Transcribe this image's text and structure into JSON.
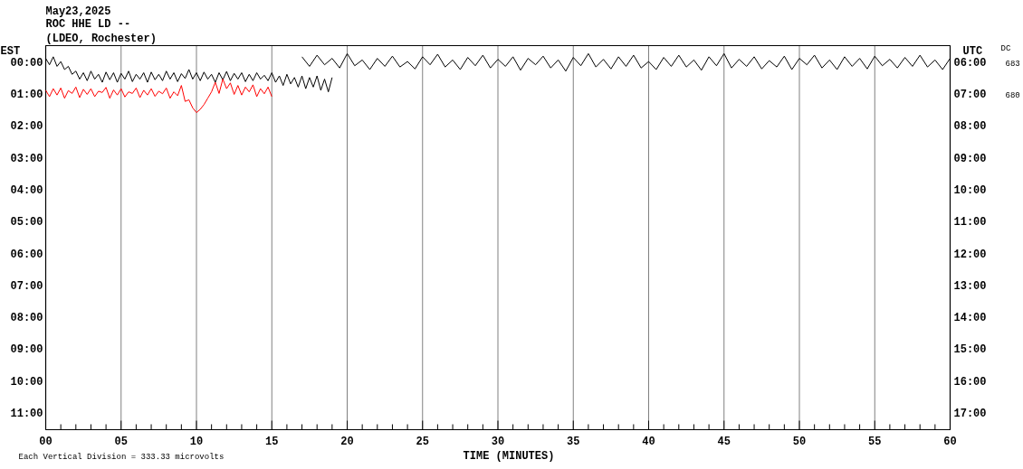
{
  "chart_data": {
    "type": "line",
    "title": "May23,2025",
    "subtitle": "ROC HHE LD --\n(LDEO, Rochester)",
    "xlabel": "TIME (MINUTES)",
    "annotations": [
      "EST",
      "UTC",
      "DC",
      "683",
      "680",
      "Each Vertical Division =  333.33 microvolts"
    ],
    "series": [
      {
        "color": "#000000",
        "x": [
          0,
          0.25,
          0.5,
          0.75,
          1,
          1.25,
          1.5,
          1.75,
          2,
          2.25,
          2.5,
          2.75,
          3,
          3.25,
          3.5,
          3.75,
          4,
          4.25,
          4.5,
          4.75,
          5,
          5.25,
          5.5,
          5.75,
          6,
          6.25,
          6.5,
          6.75,
          7,
          7.25,
          7.5,
          7.75,
          8,
          8.25,
          8.5,
          8.75,
          9,
          9.25,
          9.5,
          9.75,
          10,
          10.25,
          10.5,
          10.75,
          11,
          11.25,
          11.5,
          11.75,
          12,
          12.25,
          12.5,
          12.75,
          13,
          13.25,
          13.5,
          13.75,
          14,
          14.25,
          14.5,
          14.75,
          15,
          15.25,
          15.5,
          15.75,
          16,
          16.25,
          16.5,
          16.75,
          17,
          17.25,
          17.5,
          17.75,
          18,
          18.25,
          18.5,
          18.75,
          19
        ],
        "values": [
          -0.15,
          0.05,
          -0.2,
          0.1,
          -0.05,
          0.2,
          0.1,
          0.35,
          0.25,
          0.5,
          0.3,
          0.55,
          0.25,
          0.5,
          0.35,
          0.6,
          0.28,
          0.52,
          0.3,
          0.6,
          0.32,
          0.5,
          0.25,
          0.58,
          0.35,
          0.5,
          0.3,
          0.6,
          0.28,
          0.52,
          0.35,
          0.55,
          0.25,
          0.5,
          0.3,
          0.58,
          0.33,
          0.48,
          0.2,
          0.5,
          0.3,
          0.55,
          0.28,
          0.5,
          0.35,
          0.6,
          0.3,
          0.52,
          0.26,
          0.55,
          0.32,
          0.5,
          0.3,
          0.58,
          0.35,
          0.55,
          0.3,
          0.5,
          0.38,
          0.55,
          0.3,
          0.6,
          0.4,
          0.7,
          0.35,
          0.65,
          0.45,
          0.75,
          0.4,
          0.8,
          0.45,
          0.75,
          0.4,
          0.85,
          0.5,
          0.9,
          0.45
        ]
      },
      {
        "color": "#000000",
        "x": [
          17,
          17.5,
          18,
          18.5,
          19,
          19.5,
          20,
          20.5,
          21,
          21.5,
          22,
          22.5,
          23,
          23.5,
          24,
          24.5,
          25,
          25.5,
          26,
          26.5,
          27,
          27.5,
          28,
          28.5,
          29,
          29.5,
          30,
          30.5,
          31,
          31.5,
          32,
          32.5,
          33,
          33.5,
          34,
          34.5,
          35,
          35.5,
          36,
          36.5,
          37,
          37.5,
          38,
          38.5,
          39,
          39.5,
          40,
          40.5,
          41,
          41.5,
          42,
          42.5,
          43,
          43.5,
          44,
          44.5,
          45,
          45.5,
          46,
          46.5,
          47,
          47.5,
          48,
          48.5,
          49,
          49.5,
          50,
          50.5,
          51,
          51.5,
          52,
          52.5,
          53,
          53.5,
          54,
          54.5,
          55,
          55.5,
          56,
          56.5,
          57,
          57.5,
          58,
          58.5,
          59,
          59.5,
          60
        ],
        "values": [
          -0.2,
          0.1,
          -0.25,
          0.05,
          -0.15,
          0.15,
          -0.3,
          0.08,
          -0.1,
          0.2,
          -0.15,
          0.1,
          -0.22,
          0.12,
          -0.05,
          0.18,
          -0.2,
          0.05,
          -0.28,
          0.12,
          -0.1,
          0.2,
          -0.18,
          0.08,
          -0.25,
          0.15,
          -0.12,
          0.1,
          -0.2,
          0.22,
          -0.15,
          0.05,
          -0.22,
          0.15,
          -0.1,
          0.25,
          -0.18,
          0.08,
          -0.3,
          0.12,
          -0.12,
          0.18,
          -0.2,
          0.1,
          -0.25,
          0.15,
          -0.05,
          0.2,
          -0.18,
          0.1,
          -0.25,
          0.12,
          -0.1,
          0.22,
          -0.2,
          0.08,
          -0.3,
          0.15,
          -0.12,
          0.1,
          -0.2,
          0.18,
          -0.08,
          0.12,
          -0.22,
          0.2,
          -0.15,
          0.05,
          -0.25,
          0.15,
          -0.1,
          0.2,
          -0.2,
          0.1,
          -0.15,
          0.18,
          -0.22,
          0.08,
          -0.12,
          0.15,
          -0.18,
          0.1,
          -0.25,
          0.12,
          -0.1,
          0.2,
          -0.15
        ]
      },
      {
        "color": "#ff0000",
        "x": [
          0,
          0.25,
          0.5,
          0.75,
          1,
          1.25,
          1.5,
          1.75,
          2,
          2.25,
          2.5,
          2.75,
          3,
          3.25,
          3.5,
          3.75,
          4,
          4.25,
          4.5,
          4.75,
          5,
          5.25,
          5.5,
          5.75,
          6,
          6.25,
          6.5,
          6.75,
          7,
          7.25,
          7.5,
          7.75,
          8,
          8.25,
          8.5,
          8.75,
          9,
          9.25,
          9.5,
          9.75,
          10,
          10.25,
          10.5,
          10.75,
          11,
          11.25,
          11.5,
          11.75,
          12,
          12.25,
          12.5,
          12.75,
          13,
          13.25,
          13.5,
          13.75,
          14,
          14.25,
          14.5,
          14.75,
          15
        ],
        "values": [
          0.85,
          1.05,
          0.8,
          1.0,
          0.78,
          1.1,
          0.86,
          0.95,
          0.75,
          1.08,
          0.82,
          0.98,
          0.8,
          1.05,
          0.88,
          0.92,
          0.76,
          1.1,
          0.84,
          1.0,
          0.8,
          1.06,
          0.9,
          0.95,
          0.78,
          1.08,
          0.85,
          1.0,
          0.8,
          1.04,
          0.88,
          0.96,
          0.78,
          1.1,
          0.9,
          1.02,
          0.7,
          1.2,
          1.15,
          1.4,
          1.55,
          1.45,
          1.3,
          1.1,
          0.9,
          0.6,
          0.95,
          0.5,
          0.8,
          0.62,
          0.98,
          0.7,
          1.0,
          0.75,
          0.9,
          0.68,
          1.05,
          0.8,
          0.96,
          0.75,
          1.05
        ]
      }
    ],
    "xlim": [
      0,
      60
    ],
    "xticks": [
      {
        "value": 0,
        "label": "00"
      },
      {
        "value": 1,
        "label": null
      },
      {
        "value": 2,
        "label": null
      },
      {
        "value": 3,
        "label": null
      },
      {
        "value": 4,
        "label": null
      },
      {
        "value": 5,
        "label": "05"
      },
      {
        "value": 6,
        "label": null
      },
      {
        "value": 7,
        "label": null
      },
      {
        "value": 8,
        "label": null
      },
      {
        "value": 9,
        "label": null
      },
      {
        "value": 10,
        "label": "10"
      },
      {
        "value": 11,
        "label": null
      },
      {
        "value": 12,
        "label": null
      },
      {
        "value": 13,
        "label": null
      },
      {
        "value": 14,
        "label": null
      },
      15,
      {
        "value": 16,
        "label": null
      },
      {
        "value": 17,
        "label": null
      },
      {
        "value": 18,
        "label": null
      },
      {
        "value": 19,
        "label": null
      },
      20,
      {
        "value": 21,
        "label": null
      },
      {
        "value": 22,
        "label": null
      },
      {
        "value": 23,
        "label": null
      },
      {
        "value": 24,
        "label": null
      },
      25,
      {
        "value": 26,
        "label": null
      },
      {
        "value": 27,
        "label": null
      },
      {
        "value": 28,
        "label": null
      },
      {
        "value": 29,
        "label": null
      },
      30,
      {
        "value": 31,
        "label": null
      },
      {
        "value": 32,
        "label": null
      },
      {
        "value": 33,
        "label": null
      },
      {
        "value": 34,
        "label": null
      },
      35,
      {
        "value": 36,
        "label": null
      },
      {
        "value": 37,
        "label": null
      },
      {
        "value": 38,
        "label": null
      },
      {
        "value": 39,
        "label": null
      },
      40,
      {
        "value": 41,
        "label": null
      },
      {
        "value": 42,
        "label": null
      },
      {
        "value": 43,
        "label": null
      },
      {
        "value": 44,
        "label": null
      },
      45,
      {
        "value": 46,
        "label": null
      },
      {
        "value": 47,
        "label": null
      },
      {
        "value": 48,
        "label": null
      },
      {
        "value": 49,
        "label": null
      },
      50,
      {
        "value": 51,
        "label": null
      },
      {
        "value": 52,
        "label": null
      },
      {
        "value": 53,
        "label": null
      },
      {
        "value": 54,
        "label": null
      },
      55,
      {
        "value": 56,
        "label": null
      },
      {
        "value": 57,
        "label": null
      },
      {
        "value": 58,
        "label": null
      },
      {
        "value": 59,
        "label": null
      },
      60
    ],
    "ylim": [
      11.5,
      -0.55
    ],
    "yticks": [
      {
        "value": 0,
        "label": "00:00"
      },
      {
        "value": 1,
        "label": "01:00"
      },
      {
        "value": 2,
        "label": "02:00"
      },
      {
        "value": 3,
        "label": "03:00"
      },
      {
        "value": 4,
        "label": "04:00"
      },
      {
        "value": 5,
        "label": "05:00"
      },
      {
        "value": 6,
        "label": "06:00"
      },
      {
        "value": 7,
        "label": "07:00"
      },
      {
        "value": 8,
        "label": "08:00"
      },
      {
        "value": 9,
        "label": "09:00"
      },
      {
        "value": 10,
        "label": "10:00"
      },
      {
        "value": 11,
        "label": "11:00"
      }
    ],
    "y2lim": [
      17.5,
      5.45
    ],
    "y2ticks": [
      {
        "value": 6,
        "label": "06:00"
      },
      {
        "value": 7,
        "label": "07:00"
      },
      {
        "value": 8,
        "label": "08:00"
      },
      {
        "value": 9,
        "label": "09:00"
      },
      {
        "value": 10,
        "label": "10:00"
      },
      {
        "value": 11,
        "label": "11:00"
      },
      {
        "value": 12,
        "label": "12:00"
      },
      {
        "value": 13,
        "label": "13:00"
      },
      {
        "value": 14,
        "label": "14:00"
      },
      {
        "value": 15,
        "label": "15:00"
      },
      {
        "value": 16,
        "label": "16:00"
      },
      {
        "value": 17,
        "label": "17:00"
      }
    ],
    "grid": "x",
    "marker": "none",
    "line_style": "solid"
  }
}
